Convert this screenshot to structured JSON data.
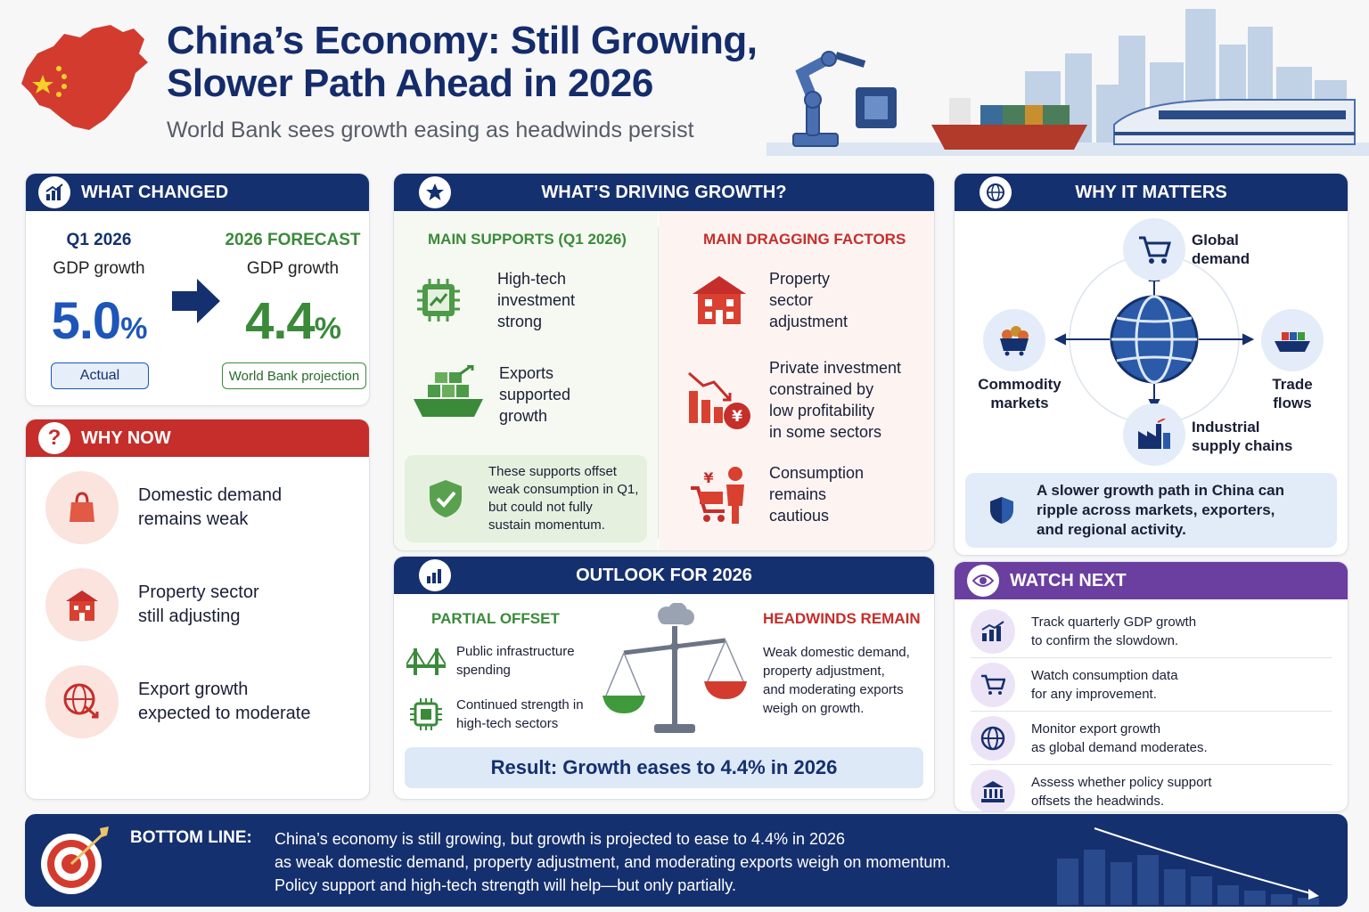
{
  "header": {
    "title_line1": "China’s Economy: Still Growing,",
    "title_line2": "Slower Path Ahead in 2026",
    "subtitle": "World Bank sees growth easing as headwinds persist"
  },
  "what_changed": {
    "heading": "WHAT CHANGED",
    "left": {
      "label": "Q1 2026",
      "sub": "GDP growth",
      "value": "5.0",
      "unit": "%",
      "tag": "Actual"
    },
    "right": {
      "label": "2026 FORECAST",
      "sub": "GDP growth",
      "value": "4.4",
      "unit": "%",
      "tag": "World Bank projection"
    }
  },
  "why_now": {
    "heading": "WHY NOW",
    "items": [
      {
        "line1": "Domestic demand",
        "line2": "remains weak",
        "icon": "shopping-bag-icon"
      },
      {
        "line1": "Property sector",
        "line2": "still adjusting",
        "icon": "building-icon"
      },
      {
        "line1": "Export growth",
        "line2": "expected to moderate",
        "icon": "globe-down-icon"
      }
    ]
  },
  "driving": {
    "heading": "WHAT’S DRIVING GROWTH?",
    "supports_heading": "MAIN SUPPORTS (Q1 2026)",
    "supports": [
      {
        "lines": [
          "High-tech",
          "investment",
          "strong"
        ],
        "icon": "chip-chart-icon"
      },
      {
        "lines": [
          "Exports",
          "supported",
          "growth"
        ],
        "icon": "cargo-ship-icon"
      }
    ],
    "note_lines": [
      "These supports offset",
      "weak consumption in Q1,",
      "but could not fully",
      "sustain momentum."
    ],
    "drag_heading": "MAIN DRAGGING FACTORS",
    "drags": [
      {
        "lines": [
          "Property",
          "sector",
          "adjustment"
        ],
        "icon": "building-icon"
      },
      {
        "lines": [
          "Private investment",
          "constrained by",
          "low profitability",
          "in some sectors"
        ],
        "icon": "declining-bars-yuan-icon"
      },
      {
        "lines": [
          "Consumption",
          "remains",
          "cautious"
        ],
        "icon": "shopper-cart-icon"
      }
    ]
  },
  "outlook": {
    "heading": "OUTLOOK FOR 2026",
    "offset_heading": "PARTIAL OFFSET",
    "offsets": [
      {
        "lines": [
          "Public infrastructure",
          "spending"
        ],
        "icon": "bridge-icon"
      },
      {
        "lines": [
          "Continued strength in",
          "high-tech sectors"
        ],
        "icon": "chip-icon"
      }
    ],
    "headwinds_heading": "HEADWINDS REMAIN",
    "headwinds_lines": [
      "Weak domestic demand,",
      "property adjustment,",
      "and moderating exports",
      "weigh on growth."
    ],
    "result": "Result: Growth eases to 4.4% in 2026"
  },
  "why_matters": {
    "heading": "WHY IT MATTERS",
    "nodes": {
      "top": [
        "Global",
        "demand"
      ],
      "left": [
        "Commodity",
        "markets"
      ],
      "right": [
        "Trade",
        "flows"
      ],
      "bottom": [
        "Industrial",
        "supply chains"
      ]
    },
    "note_lines": [
      "A slower growth path in China can",
      "ripple across markets, exporters,",
      "and regional activity."
    ]
  },
  "watch_next": {
    "heading": "WATCH NEXT",
    "items": [
      {
        "lines": [
          "Track quarterly GDP growth",
          "to confirm the slowdown."
        ],
        "icon": "bar-chart-icon"
      },
      {
        "lines": [
          "Watch consumption data",
          "for any improvement."
        ],
        "icon": "cart-icon"
      },
      {
        "lines": [
          "Monitor export growth",
          "as global demand moderates."
        ],
        "icon": "globe-icon"
      },
      {
        "lines": [
          "Assess whether policy support",
          "offsets the headwinds."
        ],
        "icon": "institution-icon"
      }
    ]
  },
  "bottom_line": {
    "label": "BOTTOM LINE:",
    "lines": [
      "China’s economy is still growing, but growth is projected to ease to 4.4% in 2026",
      "as weak domestic demand, property adjustment, and moderating exports weigh on momentum.",
      "Policy support and high-tech strength will help—but only partially."
    ]
  },
  "colors": {
    "navy": "#15306e",
    "blue_value": "#1d56b8",
    "green": "#3a8a3a",
    "red": "#c52e2a",
    "purple": "#6a3fa0"
  }
}
